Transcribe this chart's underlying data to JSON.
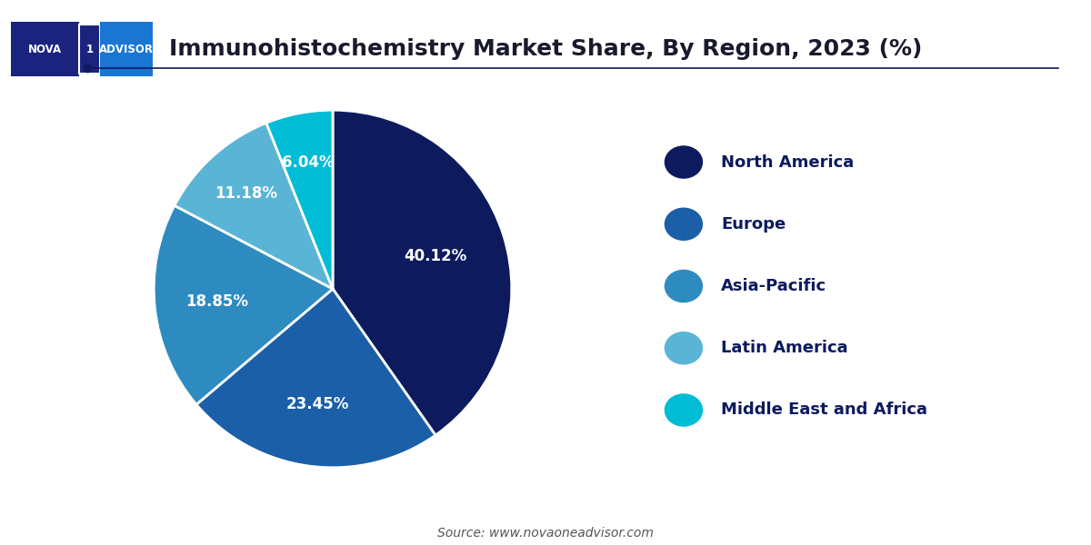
{
  "title": "Immunohistochemistry Market Share, By Region, 2023 (%)",
  "title_fontsize": 18,
  "title_color": "#1a1a2e",
  "slices": [
    40.12,
    23.45,
    18.85,
    11.18,
    6.04
  ],
  "labels": [
    "North America",
    "Europe",
    "Asia-Pacific",
    "Latin America",
    "Middle East and Africa"
  ],
  "colors": [
    "#0d1b5e",
    "#1a5fa8",
    "#2e8bc0",
    "#5ab4d6",
    "#00bcd4"
  ],
  "pct_labels": [
    "40.12%",
    "23.45%",
    "18.85%",
    "11.18%",
    "6.04%"
  ],
  "legend_text_color": "#0d1b5e",
  "source_text": "Source: www.novaoneadvisor.com",
  "bg_color": "#ffffff",
  "line_color": "#0d1b5e",
  "startangle": 90
}
